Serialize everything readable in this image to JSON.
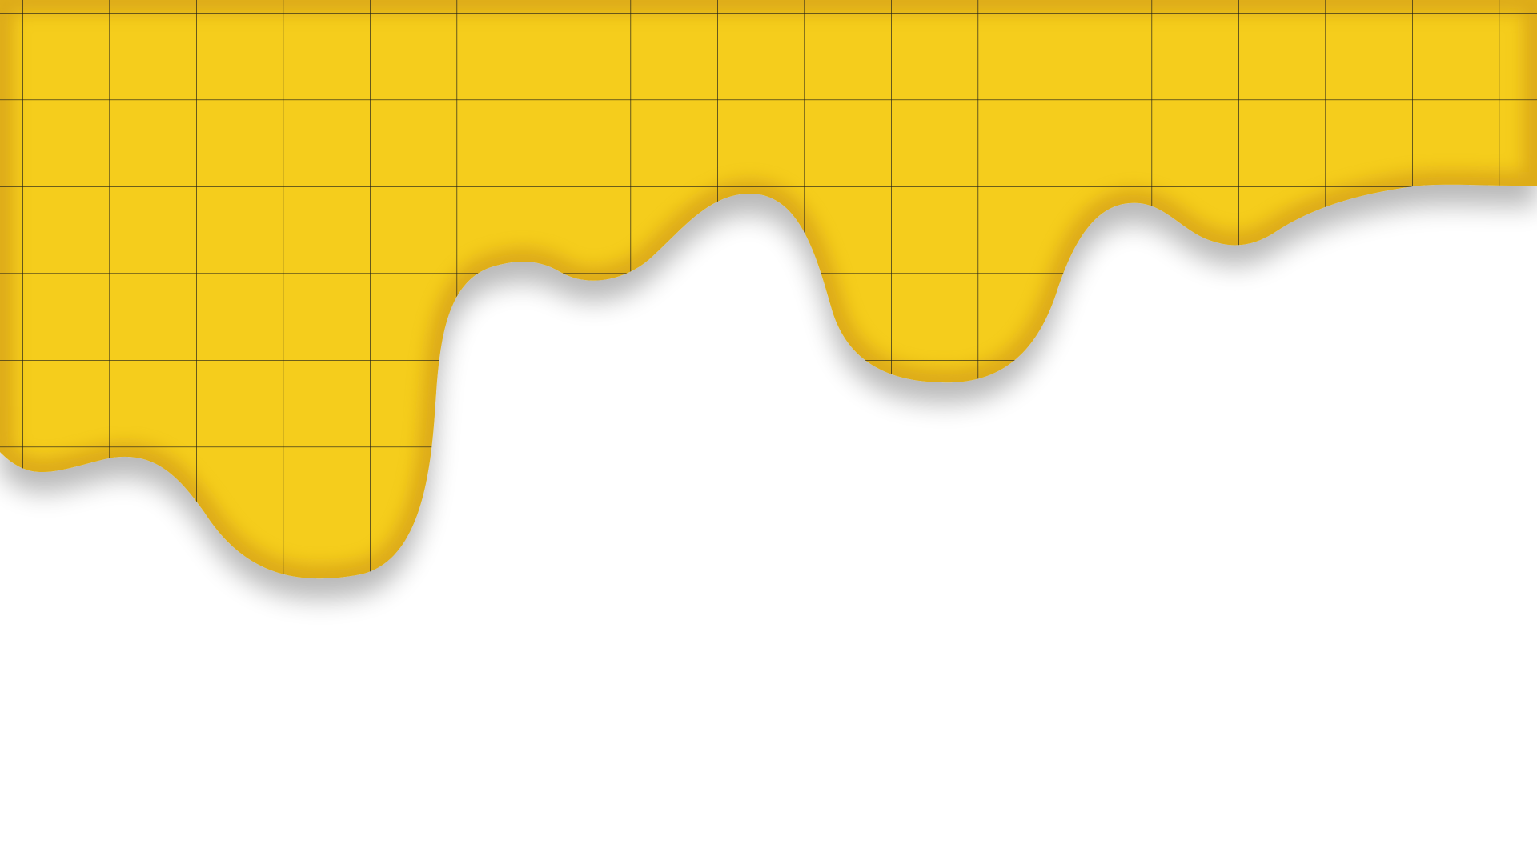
{
  "background": {
    "color": "#ffffff"
  },
  "drip": {
    "fill_color": "#f5cd1a",
    "edge_shadow_color": "#c98f12",
    "drop_shadow_color": "#7a6f86",
    "grid_line_color": "#1a1a1a"
  }
}
